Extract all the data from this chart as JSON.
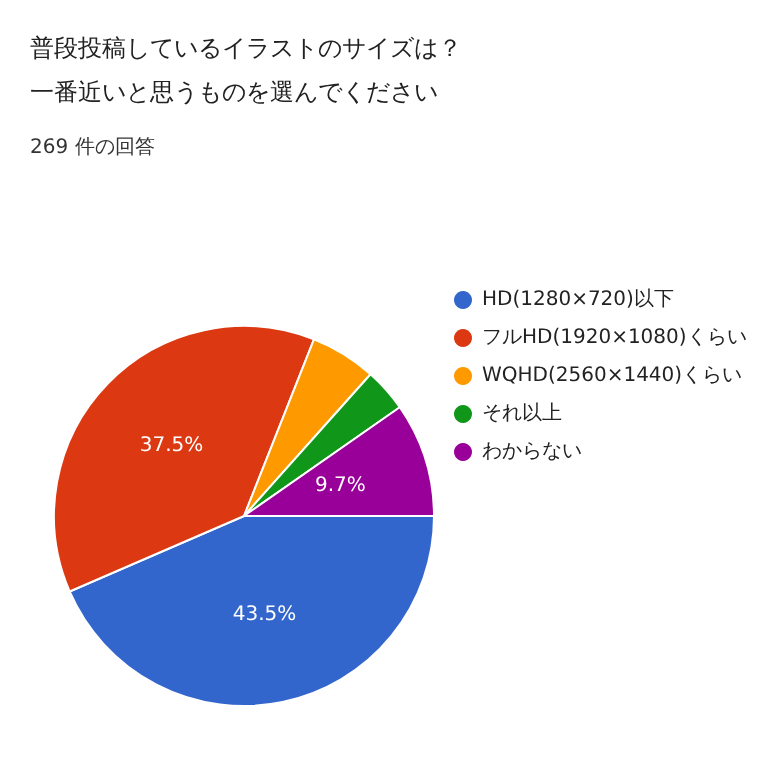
{
  "chart_data": {
    "type": "pie",
    "title": "普段投稿しているイラストのサイズは？一番近いと思うものを選んでください",
    "subtitle": "269 件の回答",
    "categories": [
      "HD(1280×720)以下",
      "フルHD(1920×1080)くらい",
      "WQHD(2560×1440)くらい",
      "それ以上",
      "わからない"
    ],
    "values": [
      43.5,
      37.5,
      5.6,
      3.7,
      9.7
    ],
    "colors": [
      "#3366cc",
      "#dc3912",
      "#ff9900",
      "#109618",
      "#990099"
    ],
    "value_labels": [
      "43.5%",
      "37.5%",
      null,
      null,
      "9.7%"
    ],
    "legend": "right"
  }
}
